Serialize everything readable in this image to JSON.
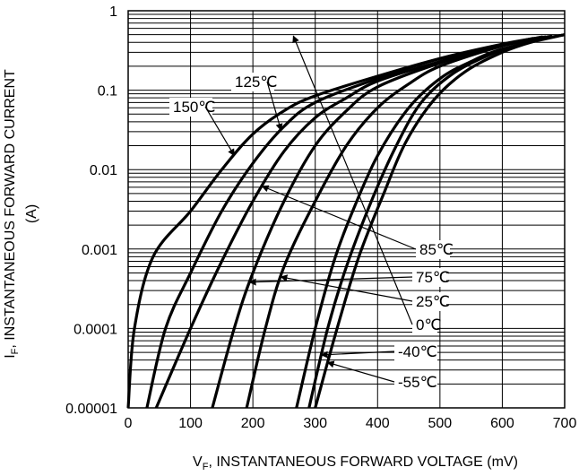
{
  "chart_data": {
    "type": "line",
    "xlabel": "V",
    "xlabel_sub": "F",
    "xlabel_rest": ", INSTANTANEOUS FORWARD VOLTAGE (mV)",
    "ylabel": "I",
    "ylabel_sub": "F",
    "ylabel_rest": ", INSTANTANEOUS FORWARD CURRENT",
    "ylabel_line2": "(A)",
    "xlim": [
      0,
      700
    ],
    "ylim": [
      1e-05,
      1
    ],
    "yscale": "log",
    "grid": true,
    "xticks": [
      0,
      100,
      200,
      300,
      400,
      500,
      600,
      700
    ],
    "xtick_labels": [
      "0",
      "100",
      "200",
      "300",
      "400",
      "500",
      "600",
      "700"
    ],
    "yticks": [
      1e-05,
      0.0001,
      0.001,
      0.01,
      0.1,
      1
    ],
    "ytick_labels": [
      "0.00001",
      "0.0001",
      "0.001",
      "0.01",
      "0.1",
      "1"
    ],
    "series": [
      {
        "name": "150℃",
        "points": [
          [
            0,
            1e-05
          ],
          [
            10,
            0.0001
          ],
          [
            40,
            0.0008
          ],
          [
            100,
            0.003
          ],
          [
            150,
            0.01
          ],
          [
            200,
            0.028
          ],
          [
            250,
            0.055
          ],
          [
            300,
            0.085
          ],
          [
            400,
            0.15
          ],
          [
            500,
            0.25
          ],
          [
            600,
            0.37
          ],
          [
            650,
            0.45
          ]
        ]
      },
      {
        "name": "125℃",
        "points": [
          [
            30,
            1e-05
          ],
          [
            60,
            0.0001
          ],
          [
            100,
            0.0005
          ],
          [
            150,
            0.003
          ],
          [
            200,
            0.012
          ],
          [
            250,
            0.035
          ],
          [
            300,
            0.07
          ],
          [
            400,
            0.14
          ],
          [
            500,
            0.25
          ],
          [
            600,
            0.38
          ],
          [
            660,
            0.46
          ]
        ]
      },
      {
        "name": "85℃",
        "points": [
          [
            45,
            1e-05
          ],
          [
            100,
            0.0001
          ],
          [
            150,
            0.0007
          ],
          [
            200,
            0.004
          ],
          [
            250,
            0.017
          ],
          [
            300,
            0.045
          ],
          [
            350,
            0.08
          ],
          [
            400,
            0.13
          ],
          [
            500,
            0.23
          ],
          [
            600,
            0.37
          ],
          [
            665,
            0.47
          ]
        ]
      },
      {
        "name": "75℃",
        "points": [
          [
            135,
            1e-05
          ],
          [
            170,
            0.0001
          ],
          [
            200,
            0.0005
          ],
          [
            250,
            0.004
          ],
          [
            300,
            0.02
          ],
          [
            350,
            0.055
          ],
          [
            400,
            0.11
          ],
          [
            500,
            0.22
          ],
          [
            600,
            0.37
          ],
          [
            670,
            0.47
          ]
        ]
      },
      {
        "name": "25℃",
        "points": [
          [
            190,
            1e-05
          ],
          [
            220,
            0.0001
          ],
          [
            250,
            0.0006
          ],
          [
            300,
            0.004
          ],
          [
            350,
            0.02
          ],
          [
            400,
            0.06
          ],
          [
            450,
            0.12
          ],
          [
            500,
            0.2
          ],
          [
            600,
            0.36
          ],
          [
            680,
            0.48
          ]
        ]
      },
      {
        "name": "0℃",
        "points": [
          [
            270,
            1e-05
          ],
          [
            300,
            0.0001
          ],
          [
            330,
            0.0007
          ],
          [
            360,
            0.003
          ],
          [
            400,
            0.015
          ],
          [
            450,
            0.06
          ],
          [
            500,
            0.14
          ],
          [
            550,
            0.23
          ],
          [
            600,
            0.33
          ],
          [
            690,
            0.48
          ]
        ]
      },
      {
        "name": "-40℃",
        "points": [
          [
            290,
            1e-05
          ],
          [
            320,
            0.0001
          ],
          [
            350,
            0.0006
          ],
          [
            390,
            0.004
          ],
          [
            430,
            0.02
          ],
          [
            470,
            0.07
          ],
          [
            520,
            0.16
          ],
          [
            580,
            0.28
          ],
          [
            640,
            0.4
          ],
          [
            700,
            0.5
          ]
        ]
      },
      {
        "name": "-55℃",
        "points": [
          [
            300,
            1e-05
          ],
          [
            335,
            0.0001
          ],
          [
            370,
            0.0008
          ],
          [
            410,
            0.005
          ],
          [
            445,
            0.022
          ],
          [
            490,
            0.075
          ],
          [
            540,
            0.17
          ],
          [
            600,
            0.3
          ],
          [
            650,
            0.41
          ],
          [
            700,
            0.5
          ]
        ]
      }
    ],
    "annotations": [
      {
        "text": "150℃",
        "series": "150℃",
        "at_x": 170
      },
      {
        "text": "125℃",
        "series": "125℃",
        "at_x": 245
      },
      {
        "text": "85℃",
        "series": "85℃",
        "at_x": 215
      },
      {
        "text": "75℃",
        "series": "75℃",
        "at_x": 195
      },
      {
        "text": "25℃",
        "series": "25℃",
        "at_x": 245
      },
      {
        "text": "0℃",
        "series": "0℃",
        "at_x": 265
      },
      {
        "text": "-40℃",
        "series": "-40℃",
        "at_x": 310
      },
      {
        "text": "-55℃",
        "series": "-55℃",
        "at_x": 320
      }
    ]
  }
}
